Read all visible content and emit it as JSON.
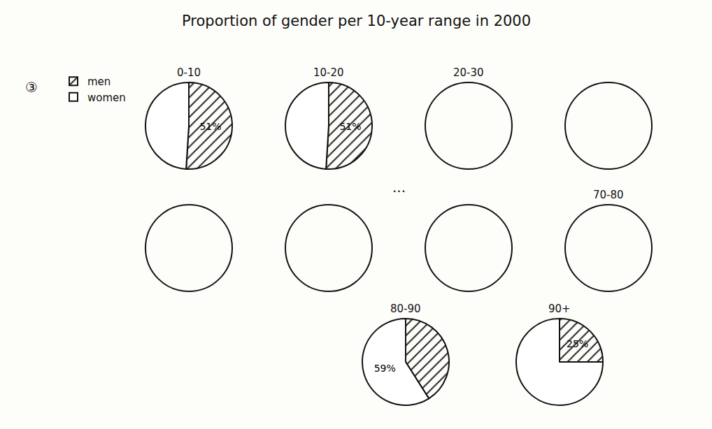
{
  "figure_number": "③",
  "title": "Proportion of gender per 10-year range in 2000",
  "ellipsis": "...",
  "chart_data": [
    {
      "type": "pie",
      "title": "0-10",
      "categories": [
        "men",
        "women"
      ],
      "values": [
        51,
        49
      ],
      "value_labels": [
        "51%",
        null
      ],
      "colors": [
        "#ffffff",
        "#ffffff"
      ]
    },
    {
      "type": "pie",
      "title": "10-20",
      "categories": [
        "men",
        "women"
      ],
      "values": [
        51,
        49
      ],
      "value_labels": [
        "51%",
        null
      ],
      "colors": [
        "#ffffff",
        "#ffffff"
      ]
    },
    {
      "type": "pie",
      "title": "20-30",
      "values": null
    },
    {
      "type": "pie",
      "title": null,
      "values": null
    },
    {
      "type": "pie",
      "title": null,
      "values": null
    },
    {
      "type": "pie",
      "title": null,
      "values": null
    },
    {
      "type": "pie",
      "title": null,
      "values": null
    },
    {
      "type": "pie",
      "title": "70-80",
      "values": null
    },
    {
      "type": "pie",
      "title": "80-90",
      "categories": [
        "men",
        "women"
      ],
      "values": [
        41,
        59
      ],
      "value_labels": [
        null,
        "59%"
      ],
      "colors": [
        "#ffffff",
        "#ffffff"
      ]
    },
    {
      "type": "pie",
      "title": "90+",
      "categories": [
        "men",
        "women"
      ],
      "values": [
        25,
        75
      ],
      "value_labels": [
        "25%",
        null
      ],
      "colors": [
        "#ffffff",
        "#ffffff"
      ]
    }
  ]
}
